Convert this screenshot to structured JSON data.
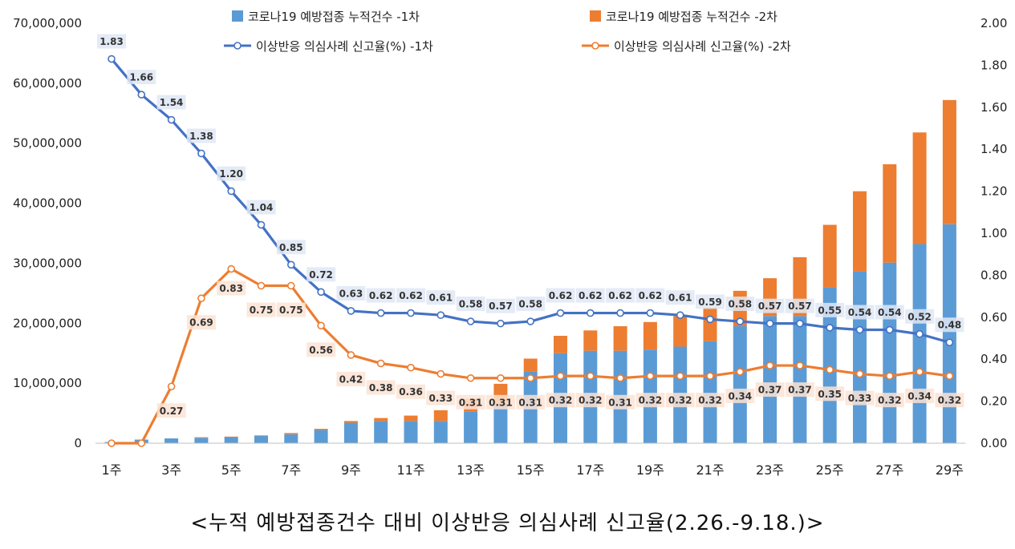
{
  "chart_data": {
    "type": "bar+line",
    "title": "<누적 예방접종건수 대비 이상반응 의심사례 신고율(2.26.-9.18.)>",
    "x_tick_labels": [
      "1주",
      "3주",
      "5주",
      "7주",
      "9주",
      "11주",
      "13주",
      "15주",
      "17주",
      "19주",
      "21주",
      "23주",
      "25주",
      "27주",
      "29주"
    ],
    "x_tick_indices": [
      1,
      3,
      5,
      7,
      9,
      11,
      13,
      15,
      17,
      19,
      21,
      23,
      25,
      27,
      29
    ],
    "weeks": [
      1,
      2,
      3,
      4,
      5,
      6,
      7,
      8,
      9,
      10,
      11,
      12,
      13,
      14,
      15,
      16,
      17,
      18,
      19,
      20,
      21,
      22,
      23,
      24,
      25,
      26,
      27,
      28,
      29
    ],
    "left_axis": {
      "min": 0,
      "max": 70000000,
      "step": 10000000,
      "tick_labels": [
        "0",
        "10,000,000",
        "20,000,000",
        "30,000,000",
        "40,000,000",
        "50,000,000",
        "60,000,000",
        "70,000,000"
      ]
    },
    "right_axis": {
      "min": 0,
      "max": 2.0,
      "step": 0.2,
      "tick_labels": [
        "0.00",
        "0.20",
        "0.40",
        "0.60",
        "0.80",
        "1.00",
        "1.20",
        "1.40",
        "1.60",
        "1.80",
        "2.00"
      ]
    },
    "series": [
      {
        "name": "코로나19 예방접종 누적건수 -1차",
        "kind": "bar",
        "axis": "left",
        "color": "#5B9BD5",
        "values": [
          200000,
          600000,
          800000,
          900000,
          1000000,
          1200000,
          1500000,
          2200000,
          3400000,
          3700000,
          3700000,
          3700000,
          5300000,
          6300000,
          11900000,
          15000000,
          15400000,
          15400000,
          15600000,
          16100000,
          17000000,
          19500000,
          21200000,
          21200000,
          26000000,
          28600000,
          30100000,
          33200000,
          36500000
        ]
      },
      {
        "name": "코로나19 예방접종 누적건수 -2차",
        "kind": "bar",
        "axis": "left",
        "color": "#ED7D31",
        "values": [
          0,
          0,
          0,
          100000,
          100000,
          100000,
          200000,
          200000,
          300000,
          500000,
          900000,
          1800000,
          2100000,
          3600000,
          2200000,
          2900000,
          3400000,
          4100000,
          4600000,
          5100000,
          5600000,
          5900000,
          6300000,
          9800000,
          10400000,
          13400000,
          16400000,
          18600000,
          20700000
        ]
      },
      {
        "name": "이상반응 의심사례 신고율(%) -1차",
        "kind": "line",
        "axis": "right",
        "color": "#4472C4",
        "values": [
          1.83,
          1.66,
          1.54,
          1.38,
          1.2,
          1.04,
          0.85,
          0.72,
          0.63,
          0.62,
          0.62,
          0.61,
          0.58,
          0.57,
          0.58,
          0.62,
          0.62,
          0.62,
          0.62,
          0.61,
          0.59,
          0.58,
          0.57,
          0.57,
          0.55,
          0.54,
          0.54,
          0.52,
          0.48
        ],
        "labels": [
          "1.83",
          "1.66",
          "1.54",
          "1.38",
          "1.20",
          "1.04",
          "0.85",
          "0.72",
          "0.63",
          "0.62",
          "0.62",
          "0.61",
          "0.58",
          "0.57",
          "0.58",
          "0.62",
          "0.62",
          "0.62",
          "0.62",
          "0.61",
          "0.59",
          "0.58",
          "0.57",
          "0.57",
          "0.55",
          "0.54",
          "0.54",
          "0.52",
          "0.48"
        ]
      },
      {
        "name": "이상반응 의심사례 신고율(%) -2차",
        "kind": "line",
        "axis": "right",
        "color": "#ED7D31",
        "values": [
          0.0,
          0.0,
          0.27,
          0.69,
          0.83,
          0.75,
          0.75,
          0.56,
          0.42,
          0.38,
          0.36,
          0.33,
          0.31,
          0.31,
          0.31,
          0.32,
          0.32,
          0.31,
          0.32,
          0.32,
          0.32,
          0.34,
          0.37,
          0.37,
          0.35,
          0.33,
          0.32,
          0.34,
          0.32
        ],
        "labels": [
          "",
          "",
          "0.27",
          "0.69",
          "0.83",
          "0.75",
          "0.75",
          "0.56",
          "0.42",
          "0.38",
          "0.36",
          "0.33",
          "0.31",
          "0.31",
          "0.31",
          "0.32",
          "0.32",
          "0.31",
          "0.32",
          "0.32",
          "0.32",
          "0.34",
          "0.37",
          "0.37",
          "0.35",
          "0.33",
          "0.32",
          "0.34",
          "0.32"
        ]
      }
    ],
    "legend_position": "top"
  }
}
